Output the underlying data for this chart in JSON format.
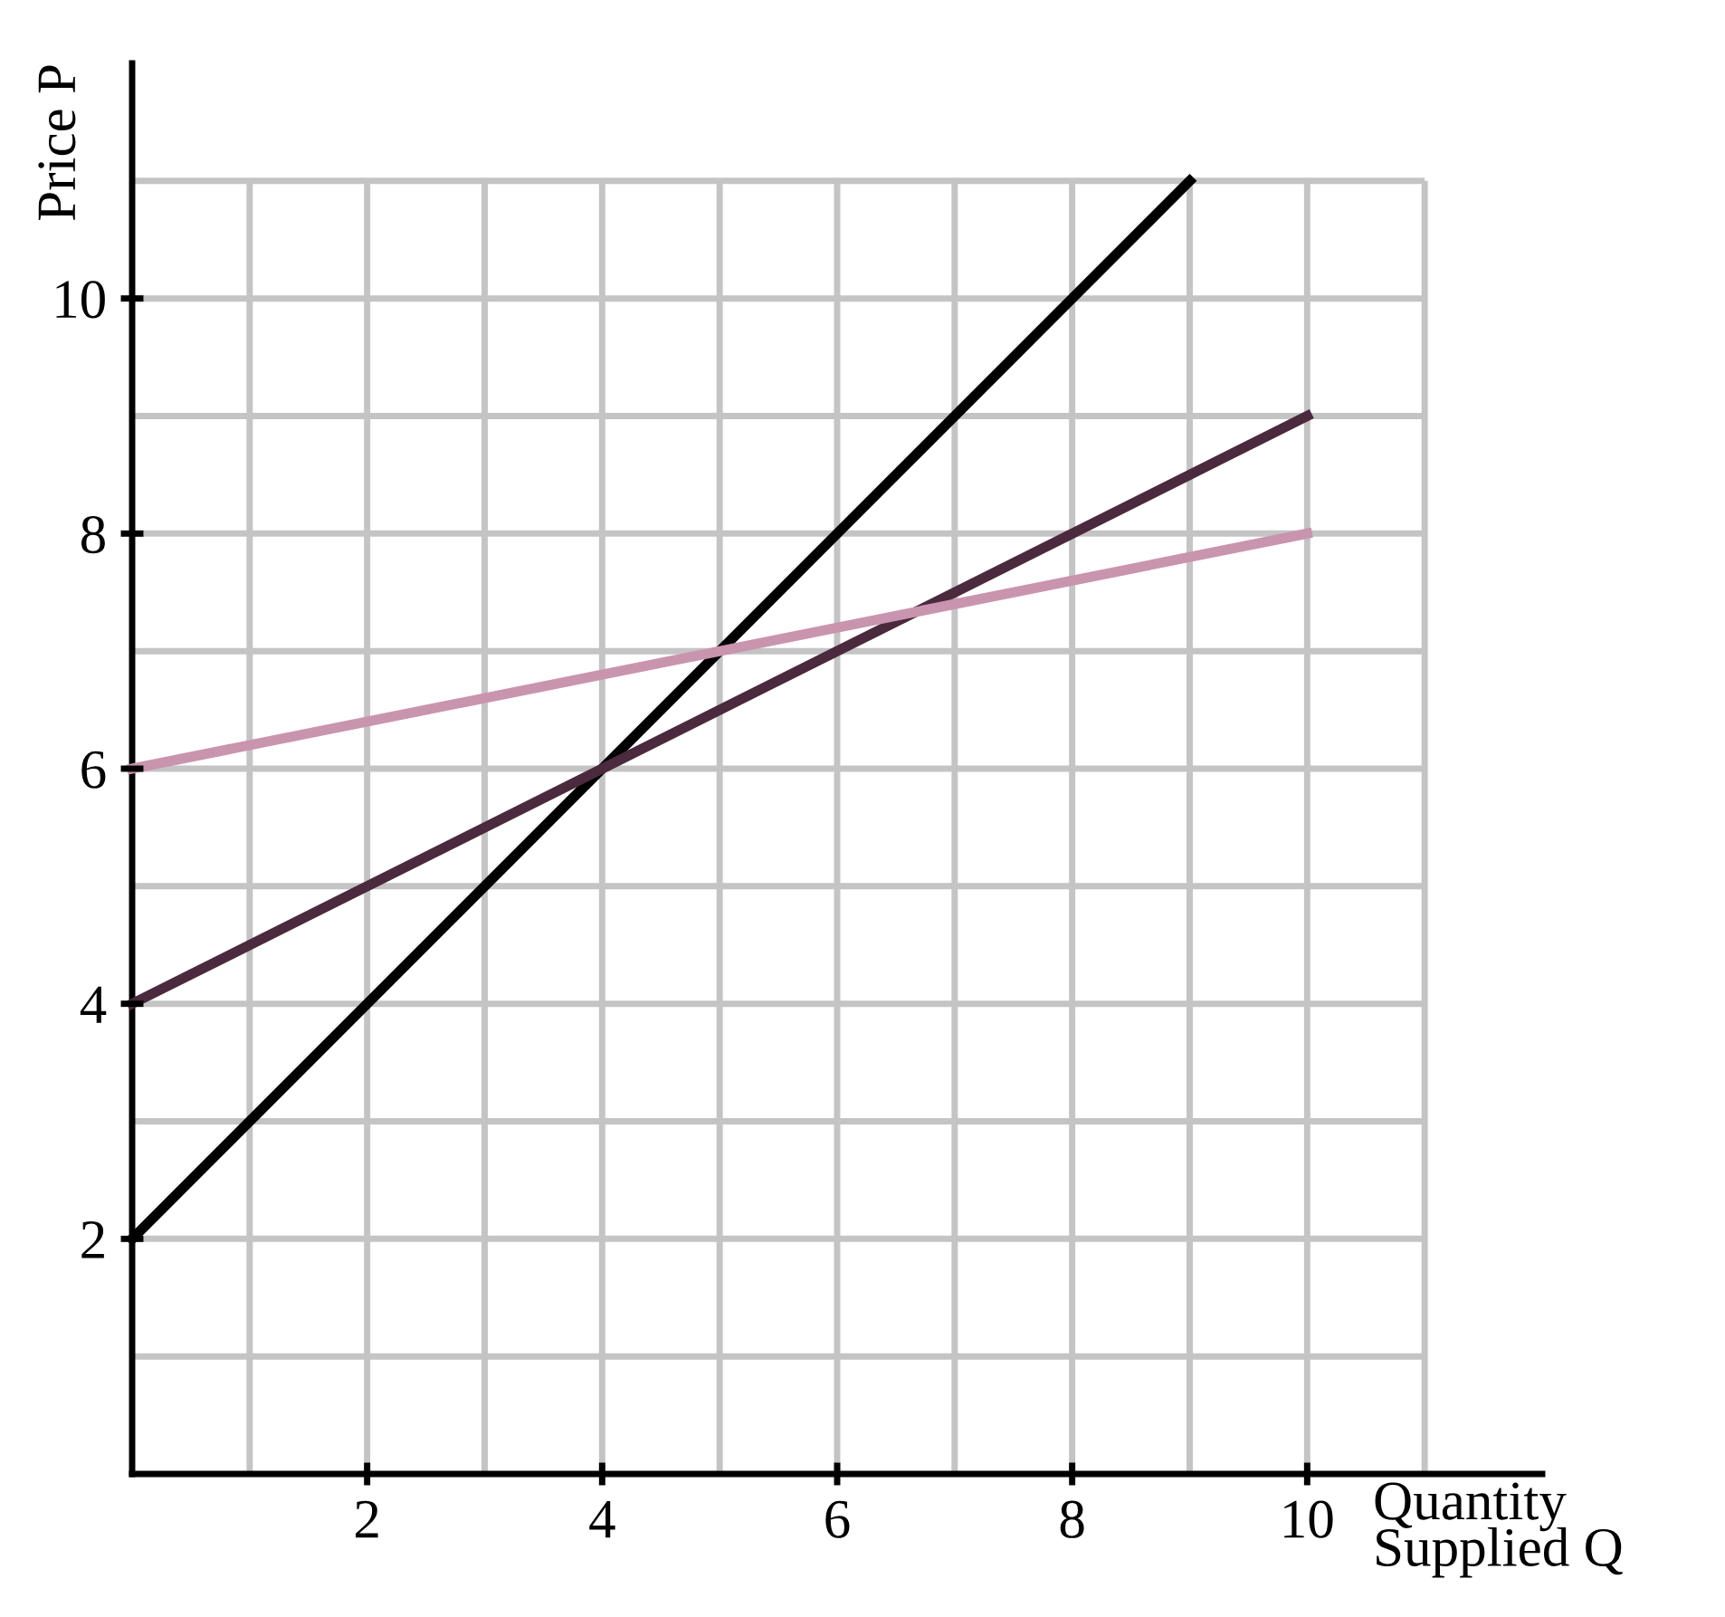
{
  "chart_data": {
    "type": "line",
    "xlabel": "Quantity\nSupplied Q",
    "ylabel": "Price P",
    "series": [
      {
        "color": "#000000",
        "x": [
          0,
          9
        ],
        "values": [
          2,
          11
        ]
      },
      {
        "color": "#4a2a3c",
        "x": [
          0,
          10
        ],
        "values": [
          4,
          9
        ]
      },
      {
        "color": "#c994ae",
        "x": [
          0,
          10
        ],
        "values": [
          6,
          8
        ]
      }
    ],
    "xlim": [
      0,
      12
    ],
    "ylim": [
      0,
      12
    ],
    "xticks": [
      {
        "value": 1,
        "label": null
      },
      2,
      {
        "value": 3,
        "label": null
      },
      4,
      {
        "value": 5,
        "label": null
      },
      6,
      {
        "value": 7,
        "label": null
      },
      8,
      {
        "value": 9,
        "label": null
      },
      10,
      {
        "value": 11,
        "label": null
      }
    ],
    "yticks": [
      {
        "value": 1,
        "label": null
      },
      2,
      {
        "value": 3,
        "label": null
      },
      4,
      {
        "value": 5,
        "label": null
      },
      6,
      {
        "value": 7,
        "label": null
      },
      8,
      {
        "value": 9,
        "label": null
      },
      10,
      {
        "value": 11,
        "label": null
      }
    ],
    "grid": true,
    "marker": "none",
    "line_style": "solid"
  }
}
